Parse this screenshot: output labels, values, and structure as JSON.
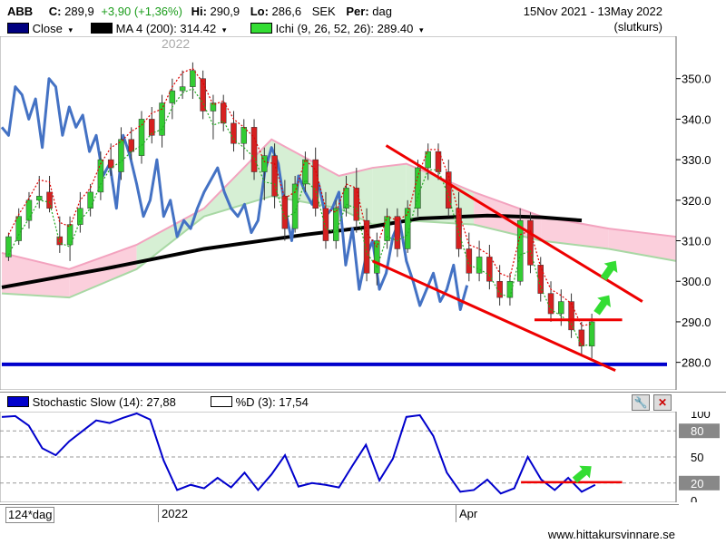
{
  "header": {
    "symbol": "ABB",
    "close_label": "C:",
    "close_value": "289,9",
    "change": "+3,90 (+1,36%)",
    "high_label": "Hi:",
    "high_value": "290,9",
    "low_label": "Lo:",
    "low_value": "286,6",
    "currency": "SEK",
    "period_label": "Per:",
    "period_value": "dag",
    "date_range": "15Nov 2021 - 13May 2022",
    "price_basis": "(slutkurs)"
  },
  "legend": {
    "close": {
      "label": "Close",
      "color": "#000080"
    },
    "ma": {
      "label": "MA 4 (200): 314.42",
      "color": "#000000"
    },
    "ichi": {
      "label": "Ichi (9, 26, 52, 26): 289.40",
      "color": "#33dd33"
    }
  },
  "stoch_legend": {
    "slow": {
      "label": "Stochastic Slow (14): 27,88",
      "color": "#0000cc"
    },
    "d": {
      "label": "%D (3): 17,54",
      "color": "#ffffff"
    }
  },
  "footer": {
    "interval": "124*dag",
    "year_label": "2022",
    "month_label": "Apr",
    "watermark": "www.hittakursvinnare.se"
  },
  "chart_data": [
    {
      "type": "line",
      "title": "ABB",
      "ylim": [
        275,
        360
      ],
      "yticks": [
        280,
        290,
        300,
        310,
        320,
        330,
        340,
        350
      ],
      "watermark_year": "2022",
      "horizontal_lines": [
        {
          "y": 279.5,
          "color": "#0000cc"
        }
      ],
      "trendlines": [
        {
          "name": "upper",
          "from": [
            0.57,
            333.5
          ],
          "to": [
            0.95,
            295.0
          ],
          "color": "#ee0000"
        },
        {
          "name": "lower",
          "from": [
            0.55,
            305.0
          ],
          "to": [
            0.91,
            278.0
          ],
          "color": "#ee0000"
        },
        {
          "name": "support",
          "from": [
            0.79,
            290.5
          ],
          "to": [
            0.92,
            290.5
          ],
          "color": "#ee0000"
        }
      ],
      "arrows": [
        {
          "at": [
            0.89,
            294.0
          ],
          "color": "#33dd33"
        },
        {
          "at": [
            0.9,
            302.5
          ],
          "color": "#33dd33"
        }
      ],
      "ma200": {
        "name": "MA 4 (200)",
        "x": [
          0.0,
          0.15,
          0.3,
          0.45,
          0.55,
          0.62,
          0.72,
          0.8,
          0.86
        ],
        "y": [
          298.5,
          303.0,
          308.0,
          311.5,
          313.5,
          315.5,
          316.2,
          315.8,
          315.0
        ]
      },
      "close_overlay": {
        "name": "Close",
        "x": [
          0.0,
          0.01,
          0.02,
          0.03,
          0.04,
          0.05,
          0.06,
          0.07,
          0.08,
          0.09,
          0.1,
          0.11,
          0.12,
          0.13,
          0.14,
          0.15,
          0.16,
          0.17,
          0.18,
          0.19,
          0.2,
          0.21,
          0.22,
          0.23,
          0.24,
          0.25,
          0.26,
          0.27,
          0.28,
          0.29,
          0.3,
          0.31,
          0.32,
          0.33,
          0.34,
          0.35,
          0.36,
          0.37,
          0.38,
          0.39,
          0.4,
          0.41,
          0.42,
          0.43,
          0.44,
          0.45,
          0.46,
          0.47,
          0.48,
          0.49,
          0.5,
          0.51,
          0.52,
          0.53,
          0.54,
          0.55,
          0.56,
          0.57,
          0.58,
          0.59,
          0.6,
          0.61,
          0.62,
          0.63,
          0.64,
          0.65,
          0.66,
          0.67,
          0.68,
          0.69
        ],
        "y": [
          338,
          336,
          348,
          346,
          340,
          345,
          333,
          350,
          348,
          336,
          343,
          338,
          341,
          332,
          336,
          326,
          329,
          318,
          336,
          331,
          324,
          316,
          320,
          330,
          316,
          320,
          311,
          315,
          313,
          318,
          322,
          325,
          328,
          322,
          318,
          316,
          319,
          312,
          315,
          327,
          333,
          329,
          318,
          310,
          326,
          322,
          319,
          324,
          316,
          318,
          322,
          304,
          313,
          298,
          306,
          310,
          298,
          302,
          311,
          315,
          305,
          300,
          294,
          298,
          302,
          295,
          298,
          304,
          293,
          299
        ]
      },
      "ichimoku": {
        "tenkan": {
          "name": "Tenkan",
          "color": "#dd0000"
        },
        "kijun": {
          "name": "Kijun",
          "color": "#22aa22"
        },
        "cloud_upper": {
          "x": [
            0.0,
            0.1,
            0.2,
            0.3,
            0.4,
            0.5,
            0.55,
            0.6,
            0.7,
            0.8,
            0.9,
            1.0
          ],
          "y": [
            307,
            303,
            309,
            318,
            335,
            326,
            328,
            329,
            322,
            316,
            313,
            311
          ]
        },
        "cloud_lower": {
          "x": [
            0.0,
            0.1,
            0.2,
            0.3,
            0.4,
            0.5,
            0.55,
            0.6,
            0.7,
            0.8,
            0.9,
            1.0
          ],
          "y": [
            297,
            296,
            303,
            316,
            321,
            318,
            314,
            315,
            314,
            310,
            308,
            305
          ]
        }
      },
      "candles": [
        {
          "o": 306,
          "h": 312,
          "l": 305,
          "c": 311
        },
        {
          "o": 310,
          "h": 318,
          "l": 309,
          "c": 316
        },
        {
          "o": 315,
          "h": 322,
          "l": 313,
          "c": 320
        },
        {
          "o": 320,
          "h": 326,
          "l": 318,
          "c": 321
        },
        {
          "o": 322,
          "h": 326,
          "l": 317,
          "c": 318
        },
        {
          "o": 311,
          "h": 316,
          "l": 307,
          "c": 309
        },
        {
          "o": 309,
          "h": 316,
          "l": 305,
          "c": 314
        },
        {
          "o": 314,
          "h": 322,
          "l": 312,
          "c": 318
        },
        {
          "o": 318,
          "h": 324,
          "l": 316,
          "c": 322
        },
        {
          "o": 322,
          "h": 332,
          "l": 320,
          "c": 330
        },
        {
          "o": 330,
          "h": 334,
          "l": 326,
          "c": 328
        },
        {
          "o": 327,
          "h": 338,
          "l": 325,
          "c": 335
        },
        {
          "o": 335,
          "h": 338,
          "l": 330,
          "c": 332
        },
        {
          "o": 331,
          "h": 342,
          "l": 329,
          "c": 340
        },
        {
          "o": 340,
          "h": 343,
          "l": 334,
          "c": 336
        },
        {
          "o": 336,
          "h": 346,
          "l": 333,
          "c": 344
        },
        {
          "o": 344,
          "h": 350,
          "l": 340,
          "c": 347
        },
        {
          "o": 347,
          "h": 352,
          "l": 345,
          "c": 348
        },
        {
          "o": 348,
          "h": 354,
          "l": 345,
          "c": 352
        },
        {
          "o": 350,
          "h": 352,
          "l": 340,
          "c": 342
        },
        {
          "o": 342,
          "h": 346,
          "l": 335,
          "c": 344
        },
        {
          "o": 344,
          "h": 346,
          "l": 337,
          "c": 339
        },
        {
          "o": 339,
          "h": 342,
          "l": 332,
          "c": 334
        },
        {
          "o": 334,
          "h": 340,
          "l": 330,
          "c": 338
        },
        {
          "o": 338,
          "h": 340,
          "l": 325,
          "c": 327
        },
        {
          "o": 327,
          "h": 333,
          "l": 320,
          "c": 331
        },
        {
          "o": 331,
          "h": 334,
          "l": 318,
          "c": 321
        },
        {
          "o": 321,
          "h": 325,
          "l": 310,
          "c": 313
        },
        {
          "o": 313,
          "h": 326,
          "l": 312,
          "c": 324
        },
        {
          "o": 324,
          "h": 332,
          "l": 322,
          "c": 330
        },
        {
          "o": 330,
          "h": 333,
          "l": 316,
          "c": 318
        },
        {
          "o": 318,
          "h": 322,
          "l": 308,
          "c": 310
        },
        {
          "o": 310,
          "h": 320,
          "l": 308,
          "c": 318
        },
        {
          "o": 318,
          "h": 326,
          "l": 316,
          "c": 323
        },
        {
          "o": 323,
          "h": 328,
          "l": 312,
          "c": 315
        },
        {
          "o": 315,
          "h": 318,
          "l": 300,
          "c": 302
        },
        {
          "o": 302,
          "h": 312,
          "l": 299,
          "c": 310
        },
        {
          "o": 310,
          "h": 318,
          "l": 308,
          "c": 316
        },
        {
          "o": 316,
          "h": 318,
          "l": 306,
          "c": 308
        },
        {
          "o": 308,
          "h": 320,
          "l": 307,
          "c": 318
        },
        {
          "o": 318,
          "h": 330,
          "l": 316,
          "c": 328
        },
        {
          "o": 328,
          "h": 334,
          "l": 325,
          "c": 332
        },
        {
          "o": 332,
          "h": 334,
          "l": 325,
          "c": 327
        },
        {
          "o": 327,
          "h": 330,
          "l": 316,
          "c": 318
        },
        {
          "o": 318,
          "h": 322,
          "l": 306,
          "c": 308
        },
        {
          "o": 308,
          "h": 312,
          "l": 300,
          "c": 302
        },
        {
          "o": 302,
          "h": 310,
          "l": 300,
          "c": 306
        },
        {
          "o": 306,
          "h": 309,
          "l": 298,
          "c": 300
        },
        {
          "o": 300,
          "h": 304,
          "l": 294,
          "c": 296
        },
        {
          "o": 296,
          "h": 302,
          "l": 294,
          "c": 300
        },
        {
          "o": 300,
          "h": 318,
          "l": 299,
          "c": 315
        },
        {
          "o": 315,
          "h": 317,
          "l": 302,
          "c": 304
        },
        {
          "o": 304,
          "h": 306,
          "l": 295,
          "c": 297
        },
        {
          "o": 297,
          "h": 300,
          "l": 290,
          "c": 292
        },
        {
          "o": 292,
          "h": 298,
          "l": 289,
          "c": 295
        },
        {
          "o": 295,
          "h": 297,
          "l": 286,
          "c": 288
        },
        {
          "o": 288,
          "h": 290,
          "l": 282,
          "c": 284
        },
        {
          "o": 284,
          "h": 292,
          "l": 281,
          "c": 290
        }
      ]
    },
    {
      "type": "line",
      "title": "Stochastic Slow (14)",
      "ylim": [
        0,
        100
      ],
      "yticks": [
        0,
        20,
        50,
        80,
        100
      ],
      "levels": [
        80,
        50,
        20
      ],
      "support_line": {
        "from": [
          0.77,
          21
        ],
        "to": [
          0.92,
          21
        ],
        "color": "#ee0000"
      },
      "arrow": {
        "at": [
          0.86,
          30
        ],
        "color": "#33dd33"
      },
      "series": [
        {
          "name": "Stochastic Slow (14)",
          "x": [
            0.0,
            0.02,
            0.04,
            0.06,
            0.08,
            0.1,
            0.12,
            0.14,
            0.16,
            0.18,
            0.2,
            0.22,
            0.24,
            0.26,
            0.28,
            0.3,
            0.32,
            0.34,
            0.36,
            0.38,
            0.4,
            0.42,
            0.44,
            0.46,
            0.48,
            0.5,
            0.52,
            0.54,
            0.56,
            0.58,
            0.6,
            0.62,
            0.64,
            0.66,
            0.68,
            0.7,
            0.72,
            0.74,
            0.76,
            0.78,
            0.8,
            0.82,
            0.84,
            0.86,
            0.88
          ],
          "y": [
            96,
            97,
            86,
            60,
            52,
            68,
            80,
            92,
            89,
            95,
            100,
            93,
            46,
            12,
            18,
            14,
            26,
            15,
            32,
            12,
            30,
            52,
            16,
            20,
            18,
            15,
            40,
            64,
            23,
            48,
            96,
            98,
            74,
            32,
            10,
            12,
            24,
            8,
            14,
            50,
            24,
            12,
            26,
            10,
            18
          ]
        }
      ]
    }
  ]
}
